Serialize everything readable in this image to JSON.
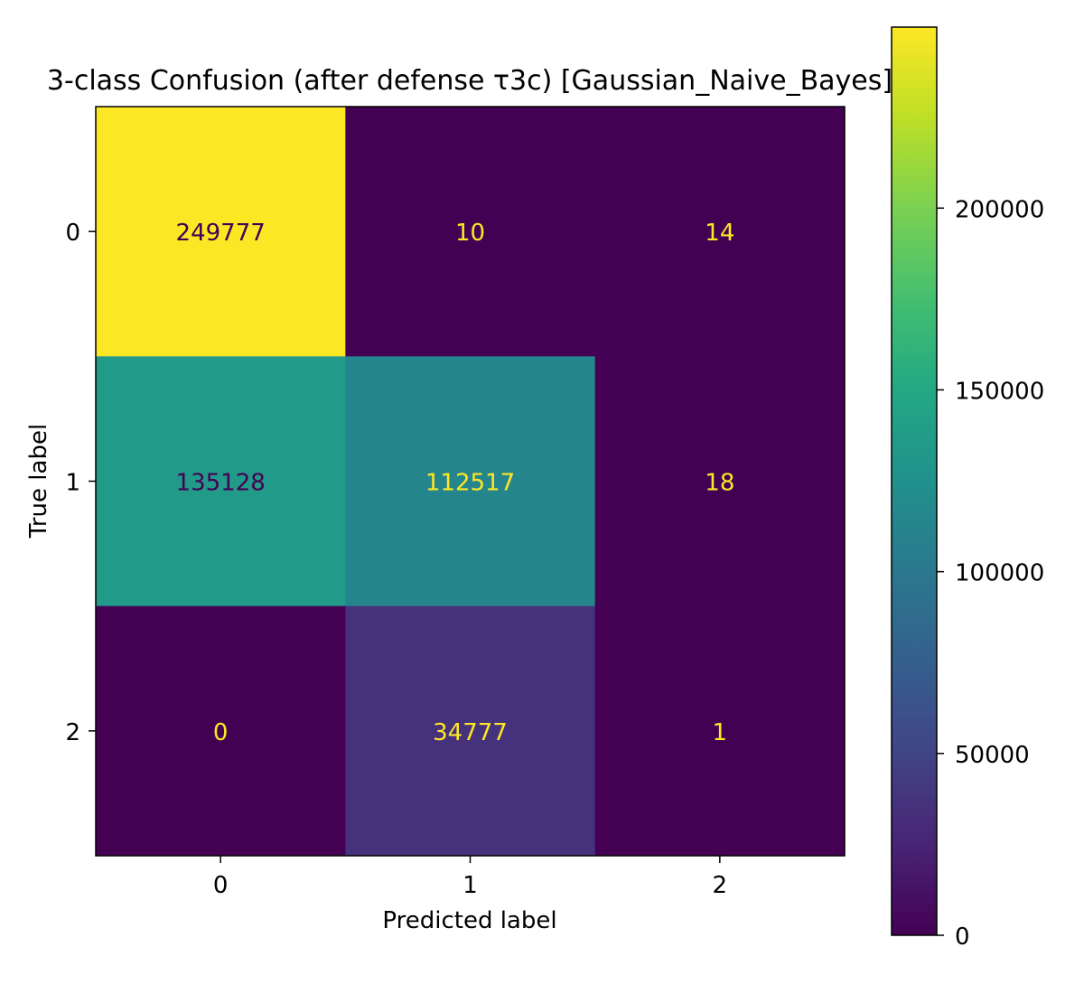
{
  "chart_data": {
    "type": "heatmap",
    "title": "3-class Confusion (after defense τ3c) [Gaussian_Naive_Bayes]",
    "xlabel": "Predicted label",
    "ylabel": "True label",
    "x_categories": [
      "0",
      "1",
      "2"
    ],
    "y_categories": [
      "0",
      "1",
      "2"
    ],
    "matrix": [
      [
        249777,
        10,
        14
      ],
      [
        135128,
        112517,
        18
      ],
      [
        0,
        34777,
        1
      ]
    ],
    "colormap": "viridis",
    "colorbar": {
      "range": [
        0,
        249777
      ],
      "ticks": [
        0,
        50000,
        100000,
        150000,
        200000
      ],
      "tick_labels": [
        "0",
        "50000",
        "100000",
        "150000",
        "200000"
      ]
    },
    "text_colors": {
      "on_dark": "#fde725",
      "on_light": "#440154"
    }
  }
}
